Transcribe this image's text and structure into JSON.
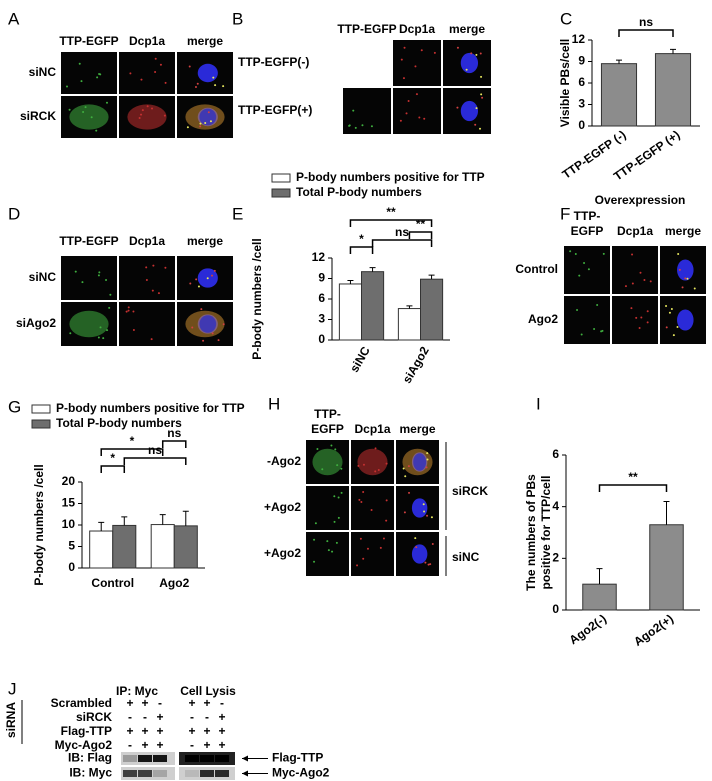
{
  "panels": {
    "A": {
      "letter": "A",
      "columns": [
        "TTP-EGFP",
        "Dcp1a",
        "merge"
      ],
      "rows": [
        "siNC",
        "siRCK"
      ]
    },
    "B": {
      "letter": "B",
      "columns": [
        "TTP-EGFP",
        "Dcp1a",
        "merge"
      ],
      "rows": [
        "TTP-EGFP(-)",
        "TTP-EGFP(+)"
      ]
    },
    "D": {
      "letter": "D",
      "columns": [
        "TTP-EGFP",
        "Dcp1a",
        "merge"
      ],
      "rows": [
        "siNC",
        "siAgo2"
      ]
    },
    "F": {
      "letter": "F",
      "title": "Overexpression",
      "columns": [
        [
          "TTP-",
          "EGFP"
        ],
        [
          "Dcp1a"
        ],
        [
          "merge"
        ]
      ],
      "rows": [
        "Control",
        "Ago2"
      ]
    },
    "H": {
      "letter": "H",
      "columns": [
        [
          "TTP-",
          "EGFP"
        ],
        [
          "Dcp1a"
        ],
        [
          "merge"
        ]
      ],
      "rows": [
        "-Ago2",
        "+Ago2",
        "+Ago2"
      ],
      "groups": [
        "siRCK",
        "siNC"
      ]
    },
    "J": {
      "letter": "J",
      "side_label": "siRNA",
      "headers": [
        "IP: Myc",
        "Cell Lysis"
      ],
      "rows": [
        {
          "label": "Scrambled",
          "signs": [
            "+",
            "+",
            "-",
            "+",
            "+",
            "-"
          ]
        },
        {
          "label": "siRCK",
          "signs": [
            "-",
            "-",
            "+",
            "-",
            "-",
            "+"
          ]
        },
        {
          "label": "Flag-TTP",
          "signs": [
            "+",
            "+",
            "+",
            "+",
            "+",
            "+"
          ]
        },
        {
          "label": "Myc-Ago2",
          "signs": [
            "-",
            "+",
            "+",
            "-",
            "+",
            "+"
          ]
        }
      ],
      "blots": [
        {
          "label": "IB: Flag",
          "target": "Flag-TTP"
        },
        {
          "label": "IB: Myc",
          "target": "Myc-Ago2"
        }
      ]
    }
  },
  "chart_data": [
    {
      "panel": "C",
      "type": "bar",
      "ylabel": "Visible PBs/cell",
      "categories": [
        "TTP-EGFP (-)",
        "TTP-EGFP (+)"
      ],
      "values": [
        8.7,
        10.1
      ],
      "errors": [
        0.5,
        0.6
      ],
      "color": "#8c8c8c",
      "ylim": [
        0,
        12
      ],
      "yticks": [
        0,
        3,
        6,
        9,
        12
      ],
      "annotations": [
        "ns"
      ]
    },
    {
      "panel": "E",
      "type": "bar",
      "ylabel": "P-body numbers /cell",
      "categories": [
        "siNC",
        "siAgo2"
      ],
      "series": [
        {
          "name": "P-body numbers positive for TTP",
          "color": "#ffffff",
          "values": [
            8.2,
            4.6
          ],
          "errors": [
            0.5,
            0.4
          ]
        },
        {
          "name": "Total P-body numbers",
          "color": "#6e6e6e",
          "values": [
            10.0,
            8.9
          ],
          "errors": [
            0.6,
            0.6
          ]
        }
      ],
      "ylim": [
        0,
        12
      ],
      "yticks": [
        0,
        3,
        6,
        9,
        12
      ],
      "annotations": [
        "*",
        "**",
        "**",
        "ns"
      ]
    },
    {
      "panel": "G",
      "type": "bar",
      "ylabel": "P-body numbers /cell",
      "categories": [
        "Control",
        "Ago2"
      ],
      "series": [
        {
          "name": "P-body numbers positive for TTP",
          "color": "#ffffff",
          "values": [
            8.6,
            10.1
          ],
          "errors": [
            2.0,
            2.3
          ]
        },
        {
          "name": "Total P-body numbers",
          "color": "#6e6e6e",
          "values": [
            9.9,
            9.8
          ],
          "errors": [
            2.0,
            3.4
          ]
        }
      ],
      "ylim": [
        0,
        20
      ],
      "yticks": [
        0,
        5,
        10,
        15,
        20
      ],
      "annotations": [
        "*",
        "ns",
        "*",
        "ns"
      ]
    },
    {
      "panel": "I",
      "type": "bar",
      "ylabel": [
        "The numbers of PBs",
        "positive for TTP/cell"
      ],
      "categories": [
        "Ago2(-)",
        "Ago2(+)"
      ],
      "values": [
        1.0,
        3.3
      ],
      "errors": [
        0.6,
        0.9
      ],
      "color": "#8c8c8c",
      "ylim": [
        0,
        6
      ],
      "yticks": [
        0,
        2,
        4,
        6
      ],
      "annotations": [
        "**"
      ]
    }
  ]
}
